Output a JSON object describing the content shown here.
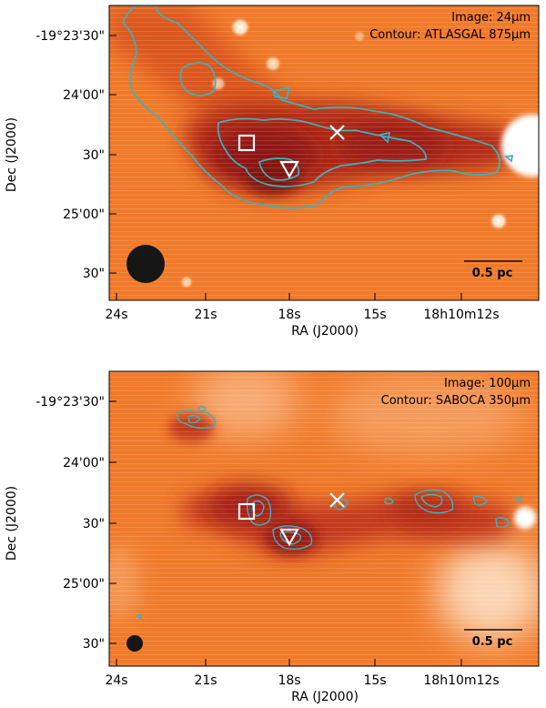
{
  "panels": [
    {
      "image_label": "Image: 24μm",
      "contour_label": "Contour: ATLASGAL 875μm",
      "ylabel": "Dec (J2000)",
      "xlabel": "RA (J2000)",
      "dec_ticks": [
        "-19°23'30\"",
        "24'00\"",
        "30\"",
        "25'00\"",
        "30\""
      ],
      "ra_ticks": [
        "24s",
        "21s",
        "18s",
        "15s",
        "18h10m12s"
      ],
      "scalebar_label": "0.5 pc",
      "markers": [
        "square",
        "cross",
        "triangle"
      ]
    },
    {
      "image_label": "Image: 100μm",
      "contour_label": "Contour: SABOCA 350μm",
      "ylabel": "Dec (J2000)",
      "xlabel": "RA (J2000)",
      "dec_ticks": [
        "-19°23'30\"",
        "24'00\"",
        "30\"",
        "25'00\"",
        "30\""
      ],
      "ra_ticks": [
        "24s",
        "21s",
        "18s",
        "15s",
        "18h10m12s"
      ],
      "scalebar_label": "0.5 pc",
      "markers": [
        "square",
        "cross",
        "triangle"
      ]
    }
  ],
  "colors": {
    "background": "#f07a2a",
    "dark_filament": "#a41d14",
    "contour": "#3fb0bc",
    "marker": "#ffffff",
    "beam": "#161616"
  }
}
